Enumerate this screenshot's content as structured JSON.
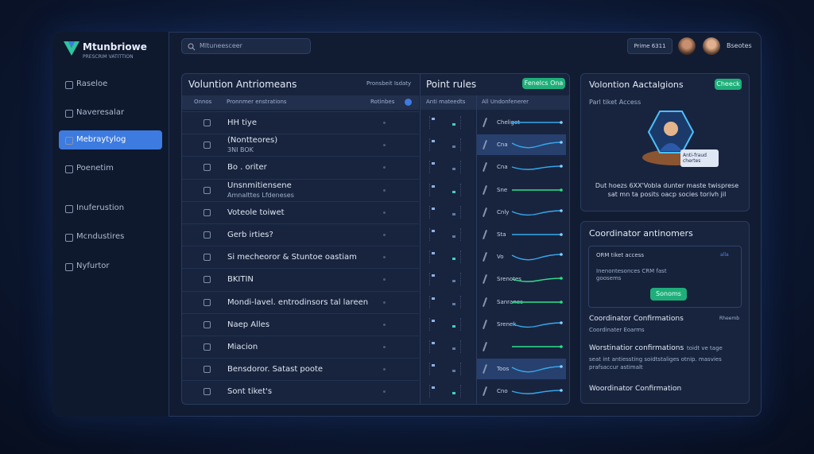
{
  "brand": {
    "name": "Mtunbriowe",
    "tagline": "PRESCRIM VATITTION"
  },
  "search": {
    "placeholder": "Mltuneesceer"
  },
  "topbar": {
    "button": "Prime 6311",
    "user": "Bseotes"
  },
  "sidebar": {
    "items": [
      "Raseloe",
      "Naveresalar",
      "Mebraytylog",
      "Poenetim",
      "Inuferustion",
      "Mcndustires",
      "Nyfurtor"
    ],
    "active": 2
  },
  "main": {
    "title": "Voluntion Antriomeans",
    "action": "Pronsbeit Isdaty",
    "columns": [
      "Onnos",
      "Pronnmer enstrations",
      "Rotinbes"
    ],
    "rows": [
      {
        "name": "HH tiye"
      },
      {
        "name": "(Nontteores)",
        "sub": "3NI BOK"
      },
      {
        "name": "Bo . oriter"
      },
      {
        "name": "Unsnmitiensene",
        "sub": "Amnalttes Lfdeneses"
      },
      {
        "name": "Voteole toiwet"
      },
      {
        "name": "Gerb irties?"
      },
      {
        "name": "Si mecheoror & Stuntoe oastiam"
      },
      {
        "name": "BKITIN"
      },
      {
        "name": "Mondi-lavel. entrodinsors tal lareen"
      },
      {
        "name": "Naep Alles"
      },
      {
        "name": "Miacion"
      },
      {
        "name": "Bensdoror. Satast poote"
      },
      {
        "name": "Sont tiket's"
      }
    ]
  },
  "rules": {
    "title": "Point rules",
    "button": "Fenelcs Ona",
    "columns": [
      "Anti mateedts",
      "All Undonfenerer"
    ],
    "rows": [
      "Cheliget",
      "Cna",
      "Cna",
      "Sne",
      "Cnly",
      "Sta",
      "Vo",
      "Srenotes",
      "Sanranes",
      "Srenek",
      null,
      "Toos",
      "Cno"
    ],
    "highlight": [
      1,
      11
    ]
  },
  "panel_actions": {
    "title": "Volontion Aactalgions",
    "button": "Cheeck",
    "subtitle": "Parl tiket Access",
    "badge": "Anti-fraud chertes",
    "text": "Dut hoezs 6XX'Vobla dunter maste twisprese sat mn ta posits oacp socies torivh jil"
  },
  "panel_coord": {
    "title": "Coordinator antinomers",
    "card_title": "ORM tiket access",
    "card_tag": "alla",
    "card_text": "Inenontesonces CRM fast goosems",
    "card_button": "Sonoms",
    "section_title": "Coordinator Confirmations",
    "section_tag": "Rheemb",
    "section_sub": "Coordinater Eoarms",
    "item_title": "Worstinatior confirmations",
    "item_tail": "toidt ve tage",
    "item_text": "seat int antiessting soidtstaliges otnip. masvies prafsaccur astimalt",
    "footer": "Woordinator Confirmation"
  }
}
